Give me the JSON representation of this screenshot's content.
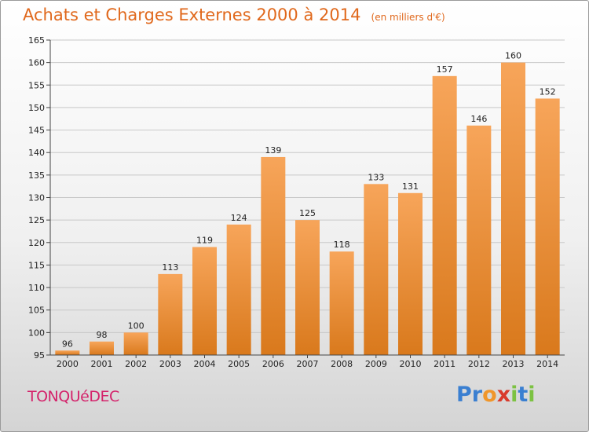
{
  "title": "Achats et Charges Externes 2000 à 2014",
  "subtitle": "(en milliers d'€)",
  "commune": "TONQUéDEC",
  "logo": {
    "letters": [
      "P",
      "r",
      "o",
      "x",
      "i",
      "t",
      "i"
    ],
    "colors": [
      "#3a7fd1",
      "#3a7fd1",
      "#f0962a",
      "#d93a2b",
      "#7cc242",
      "#3a7fd1",
      "#7cc242"
    ]
  },
  "colors": {
    "bar_light": "#f7a55a",
    "bar_dark": "#d9791c",
    "title": "#e0681c",
    "grid": "#c8c8c8"
  },
  "chart_data": {
    "type": "bar",
    "categories": [
      "2000",
      "2001",
      "2002",
      "2003",
      "2004",
      "2005",
      "2006",
      "2007",
      "2008",
      "2009",
      "2010",
      "2011",
      "2012",
      "2013",
      "2014"
    ],
    "values": [
      96,
      98,
      100,
      113,
      119,
      124,
      139,
      125,
      118,
      133,
      131,
      157,
      146,
      160,
      152
    ],
    "ylim": [
      95,
      165
    ],
    "yticks": [
      95,
      100,
      105,
      110,
      115,
      120,
      125,
      130,
      135,
      140,
      145,
      150,
      155,
      160,
      165
    ],
    "grid": true,
    "xlabel": "",
    "ylabel": ""
  }
}
